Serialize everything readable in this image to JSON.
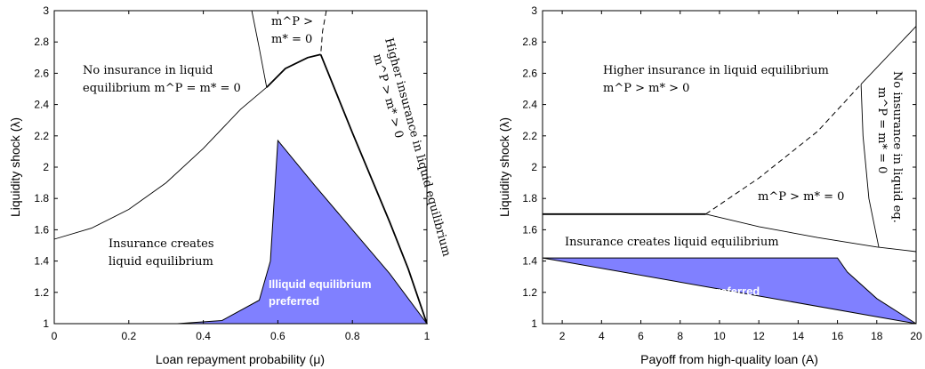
{
  "chart_data": [
    {
      "type": "area",
      "xlabel": "Loan repayment probability (μ)",
      "ylabel": "Liquidity shock (λ)",
      "xlim": [
        0,
        1
      ],
      "ylim": [
        1,
        3
      ],
      "xticks": [
        "0",
        "0.2",
        "0.4",
        "0.6",
        "0.8",
        "1"
      ],
      "yticks": [
        "1",
        "1.2",
        "1.4",
        "1.6",
        "1.8",
        "2",
        "2.2",
        "2.4",
        "2.6",
        "2.8",
        "3"
      ],
      "fill_color": "#8080ff",
      "series": [
        {
          "style": "solid-thin",
          "x": [
            0,
            0.1,
            0.2,
            0.3,
            0.4,
            0.5,
            0.57
          ],
          "y": [
            1.54,
            1.61,
            1.73,
            1.9,
            2.12,
            2.37,
            2.51
          ]
        },
        {
          "style": "solid-thin",
          "x": [
            0.53,
            0.55,
            0.57
          ],
          "y": [
            3.0,
            2.76,
            2.51
          ]
        },
        {
          "style": "dashed",
          "x": [
            0.73,
            0.72,
            0.715
          ],
          "y": [
            3.0,
            2.87,
            2.72
          ]
        },
        {
          "style": "solid-thick",
          "x": [
            0.57,
            0.62,
            0.68,
            0.715
          ],
          "y": [
            2.51,
            2.63,
            2.7,
            2.72
          ]
        },
        {
          "style": "solid-thick",
          "x": [
            0.715,
            0.8,
            0.9,
            0.95,
            1.0
          ],
          "y": [
            2.72,
            2.22,
            1.65,
            1.35,
            1.0
          ]
        },
        {
          "style": "fill-region",
          "x": [
            0.33,
            0.45,
            0.55,
            0.58,
            0.6,
            0.7,
            0.8,
            0.9,
            1.0
          ],
          "y": [
            1.0,
            1.02,
            1.15,
            1.4,
            2.17,
            1.88,
            1.6,
            1.32,
            1.0
          ]
        }
      ],
      "annotations": [
        {
          "id": "no_ins_1",
          "text": "No insurance in liquid"
        },
        {
          "id": "no_ins_2",
          "text": "equilibrium m^P = m* = 0"
        },
        {
          "id": "mp_top_1",
          "text": "m^P >"
        },
        {
          "id": "mp_top_2",
          "text": "m* = 0"
        },
        {
          "id": "higher_1",
          "text": "Higher insurance in liquid equilibrium"
        },
        {
          "id": "higher_2",
          "text": "m^P > m* > 0"
        },
        {
          "id": "ins_creates_1",
          "text": "Insurance creates"
        },
        {
          "id": "ins_creates_2",
          "text": "liquid equilibrium"
        },
        {
          "id": "illiquid_1",
          "text": "Illiquid equilibrium"
        },
        {
          "id": "illiquid_2",
          "text": "preferred"
        }
      ]
    },
    {
      "type": "area",
      "xlabel": "Payoff from high-quality loan (A)",
      "ylabel": "Liquidity shock (λ)",
      "xlim": [
        1,
        20
      ],
      "ylim": [
        1,
        3
      ],
      "xticks": [
        "2",
        "4",
        "6",
        "8",
        "10",
        "12",
        "14",
        "16",
        "18",
        "20"
      ],
      "yticks": [
        "1",
        "1.2",
        "1.4",
        "1.6",
        "1.8",
        "2",
        "2.2",
        "2.4",
        "2.6",
        "2.8",
        "3"
      ],
      "fill_color": "#8080ff",
      "series": [
        {
          "style": "solid-thick",
          "x": [
            1,
            9.3
          ],
          "y": [
            1.7,
            1.7
          ]
        },
        {
          "style": "dashed",
          "x": [
            9.3,
            12,
            15,
            17.2
          ],
          "y": [
            1.7,
            1.93,
            2.23,
            2.53
          ]
        },
        {
          "style": "solid-thin",
          "x": [
            17.2,
            20
          ],
          "y": [
            2.53,
            2.9
          ]
        },
        {
          "style": "solid-thin",
          "x": [
            9.3,
            12,
            15,
            18,
            20
          ],
          "y": [
            1.7,
            1.62,
            1.55,
            1.49,
            1.46
          ]
        },
        {
          "style": "solid-thin",
          "x": [
            17.2,
            17.3,
            17.6,
            18.1
          ],
          "y": [
            2.53,
            2.2,
            1.8,
            1.49
          ]
        },
        {
          "style": "fill-region",
          "x": [
            1,
            16,
            16.5,
            18,
            20
          ],
          "y": [
            1.42,
            1.42,
            1.33,
            1.16,
            1.0
          ]
        }
      ],
      "annotations": [
        {
          "id": "higher_1",
          "text": "Higher insurance in liquid equilibrium"
        },
        {
          "id": "higher_2",
          "text": "m^P > m* > 0"
        },
        {
          "id": "no_ins_1",
          "text": "No insurance in liquid eq."
        },
        {
          "id": "no_ins_2",
          "text": "m^P = m* = 0"
        },
        {
          "id": "mp_mid",
          "text": "m^P > m* = 0"
        },
        {
          "id": "ins_creates",
          "text": "Insurance creates liquid equilibrium"
        },
        {
          "id": "illiquid",
          "text": "Illiquid equilibrium preferred"
        }
      ]
    }
  ]
}
